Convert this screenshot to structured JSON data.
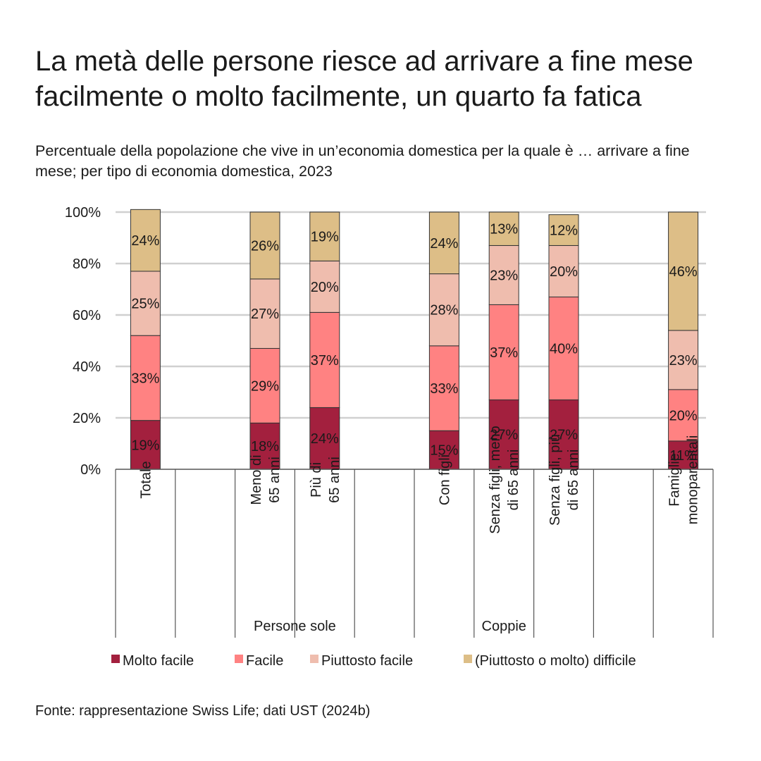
{
  "title_lines": [
    "La metà delle persone riesce ad arrivare a fine mese",
    "facilmente o molto facilmente, un quarto fa fatica"
  ],
  "subtitle_lines": [
    "Percentuale della popolazione che vive in un’economia domestica per la quale è … arrivare a fine",
    "mese; per tipo di economia domestica, 2023"
  ],
  "source": "Fonte: rappresentazione Swiss Life; dati UST (2024b)",
  "chart_data": {
    "type": "bar",
    "stacked": true,
    "title": "La metà delle persone riesce ad arrivare a fine mese facilmente o molto facilmente, un quarto fa fatica",
    "subtitle": "Percentuale della popolazione che vive in un’economia domestica per la quale è … arrivare a fine mese; per tipo di economia domestica, 2023",
    "xlabel": "",
    "ylabel": "",
    "ylim": [
      0,
      100
    ],
    "yticks": [
      "0%",
      "20%",
      "40%",
      "60%",
      "80%",
      "100%"
    ],
    "grid": true,
    "legend_position": "bottom",
    "categories": [
      [
        "Totale"
      ],
      [],
      [
        "Meno di",
        "65 anni"
      ],
      [
        "Più di",
        "65 anni"
      ],
      [],
      [
        "Con figli"
      ],
      [
        "Senza figli, meno",
        "di 65 anni"
      ],
      [
        "Senza figli, più",
        "di 65 anni"
      ],
      [],
      [
        "Famiglie",
        "monoparentali"
      ]
    ],
    "groups": [
      {
        "label": "Persone sole",
        "from": 2,
        "to": 3
      },
      {
        "label": "Coppie",
        "from": 5,
        "to": 7
      }
    ],
    "series": [
      {
        "name": "Molto facile",
        "color": "#A3203E",
        "values": [
          19,
          null,
          18,
          24,
          null,
          15,
          27,
          27,
          null,
          11
        ],
        "labels": [
          "19%",
          null,
          "18%",
          "24%",
          null,
          "15%",
          "27%",
          "27%",
          null,
          "11%"
        ]
      },
      {
        "name": "Facile",
        "color": "#FF8282",
        "values": [
          33,
          null,
          29,
          37,
          null,
          33,
          37,
          40,
          null,
          20
        ],
        "labels": [
          "33%",
          null,
          "29%",
          "37%",
          null,
          "33%",
          "37%",
          "40%",
          null,
          "20%"
        ]
      },
      {
        "name": "Piuttosto facile",
        "color": "#EFBDAE",
        "values": [
          25,
          null,
          27,
          20,
          null,
          28,
          23,
          20,
          null,
          23
        ],
        "labels": [
          "25%",
          null,
          "27%",
          "20%",
          null,
          "28%",
          "23%",
          "20%",
          null,
          "23%"
        ]
      },
      {
        "name": "(Piuttosto o molto) difficile",
        "color": "#DDBE87",
        "values": [
          24,
          null,
          26,
          19,
          null,
          24,
          13,
          12,
          null,
          46
        ],
        "labels": [
          "24%",
          null,
          "26%",
          "19%",
          null,
          "24%",
          "13%",
          "12%",
          null,
          "46%"
        ]
      }
    ]
  }
}
